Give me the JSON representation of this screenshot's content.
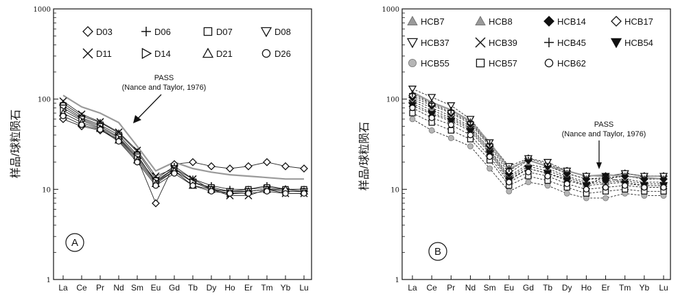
{
  "panels": [
    {
      "panel_label": "A",
      "ylabel": "样品/球粒陨石",
      "annotation_line1": "PASS",
      "annotation_line2": "(Nance and Taylor, 1976)",
      "legend": [
        {
          "name": "D03",
          "marker": "diamond"
        },
        {
          "name": "D06",
          "marker": "plus"
        },
        {
          "name": "D07",
          "marker": "square"
        },
        {
          "name": "D08",
          "marker": "tri-down"
        },
        {
          "name": "D11",
          "marker": "cross"
        },
        {
          "name": "D14",
          "marker": "tri-right"
        },
        {
          "name": "D21",
          "marker": "tri-up"
        },
        {
          "name": "D26",
          "marker": "circle"
        }
      ]
    },
    {
      "panel_label": "B",
      "ylabel": "样品/球粒陨石",
      "annotation_line1": "PASS",
      "annotation_line2": "(Nance and Taylor, 1976)",
      "legend": [
        {
          "name": "HCB7",
          "marker": "tri-up-filled"
        },
        {
          "name": "HCB8",
          "marker": "tri-up-filled"
        },
        {
          "name": "HCB14",
          "marker": "diamond-filled"
        },
        {
          "name": "HCB17",
          "marker": "diamond"
        },
        {
          "name": "HCB37",
          "marker": "tri-down"
        },
        {
          "name": "HCB39",
          "marker": "cross"
        },
        {
          "name": "HCB45",
          "marker": "plus"
        },
        {
          "name": "HCB54",
          "marker": "tri-down-filled"
        },
        {
          "name": "HCB55",
          "marker": "circle-filled"
        },
        {
          "name": "HCB57",
          "marker": "square"
        },
        {
          "name": "HCB62",
          "marker": "circle"
        }
      ]
    }
  ],
  "chart_data": [
    {
      "type": "line",
      "panel": "A",
      "ylabel": "样品/球粒陨石",
      "yscale": "log",
      "ylim": [
        1,
        1000
      ],
      "yticks": [
        "1",
        "10",
        "100",
        "1000"
      ],
      "categories": [
        "La",
        "Ce",
        "Pr",
        "Nd",
        "Sm",
        "Eu",
        "Gd",
        "Tb",
        "Dy",
        "Ho",
        "Er",
        "Tm",
        "Yb",
        "Lu"
      ],
      "series": [
        {
          "name": "D03",
          "values": [
            60,
            50,
            45,
            36,
            22,
            7,
            19,
            20,
            18,
            17,
            18,
            20,
            18,
            17
          ]
        },
        {
          "name": "D06",
          "values": [
            90,
            65,
            55,
            42,
            26,
            13,
            18,
            13,
            11,
            10,
            10,
            11,
            10,
            10
          ]
        },
        {
          "name": "D07",
          "values": [
            85,
            62,
            52,
            40,
            24,
            12,
            17,
            12,
            10.5,
            9.5,
            10,
            10.5,
            10,
            10
          ]
        },
        {
          "name": "D08",
          "values": [
            80,
            60,
            50,
            38,
            23,
            12.5,
            17,
            12,
            10,
            9.5,
            9.5,
            10,
            9.5,
            9.5
          ]
        },
        {
          "name": "D11",
          "values": [
            95,
            68,
            56,
            43,
            27,
            14,
            17,
            13,
            10,
            8.5,
            8.5,
            10,
            9,
            9
          ]
        },
        {
          "name": "D14",
          "values": [
            75,
            58,
            48,
            37,
            22,
            12,
            16,
            12,
            10,
            9,
            9.5,
            10,
            9.5,
            9.5
          ]
        },
        {
          "name": "D21",
          "values": [
            70,
            55,
            47,
            35,
            21,
            11.5,
            16,
            11,
            10,
            9.5,
            9.5,
            10,
            10,
            9.5
          ]
        },
        {
          "name": "D26",
          "values": [
            65,
            52,
            46,
            34,
            20,
            11,
            15,
            11,
            9.5,
            9,
            9,
            9.5,
            9,
            9
          ]
        },
        {
          "name": "PASS",
          "values": [
            110,
            82,
            70,
            55,
            30,
            16,
            20,
            17,
            15.5,
            14.5,
            14,
            13.5,
            13,
            13
          ]
        }
      ]
    },
    {
      "type": "line",
      "panel": "B",
      "ylabel": "样品/球粒陨石",
      "yscale": "log",
      "ylim": [
        1,
        1000
      ],
      "yticks": [
        "1",
        "10",
        "100",
        "1000"
      ],
      "categories": [
        "La",
        "Ce",
        "Pr",
        "Nd",
        "Sm",
        "Eu",
        "Gd",
        "Tb",
        "Dy",
        "Ho",
        "Er",
        "Tm",
        "Yb",
        "Lu"
      ],
      "series": [
        {
          "name": "HCB7",
          "values": [
            100,
            80,
            65,
            50,
            28,
            14,
            19,
            17,
            14,
            12,
            12.5,
            13,
            12,
            12
          ]
        },
        {
          "name": "HCB8",
          "values": [
            95,
            75,
            62,
            48,
            27,
            13.5,
            18,
            16,
            13.5,
            11.5,
            12,
            12.5,
            11.5,
            11.5
          ]
        },
        {
          "name": "HCB14",
          "values": [
            105,
            85,
            70,
            53,
            30,
            15,
            21,
            18,
            15,
            13,
            13,
            14,
            13,
            13
          ]
        },
        {
          "name": "HCB17",
          "values": [
            110,
            88,
            72,
            55,
            31,
            16,
            22,
            19,
            16,
            14,
            14,
            15,
            14,
            14
          ]
        },
        {
          "name": "HCB37",
          "values": [
            130,
            105,
            85,
            60,
            33,
            18,
            22,
            20,
            16,
            14,
            14,
            15,
            14,
            14
          ]
        },
        {
          "name": "HCB39",
          "values": [
            90,
            70,
            60,
            46,
            26,
            13,
            17,
            15,
            13,
            11,
            11.5,
            12,
            11,
            11
          ]
        },
        {
          "name": "HCB45",
          "values": [
            115,
            90,
            75,
            56,
            32,
            17,
            21,
            18,
            15,
            13,
            13.5,
            14,
            13,
            13
          ]
        },
        {
          "name": "HCB54",
          "values": [
            85,
            68,
            57,
            44,
            25,
            12.5,
            17,
            15,
            12.5,
            11,
            14,
            11.5,
            11,
            11
          ]
        },
        {
          "name": "HCB55",
          "values": [
            60,
            45,
            37,
            30,
            17,
            9.5,
            12,
            11,
            9,
            8,
            8,
            9,
            8.5,
            8.5
          ]
        },
        {
          "name": "HCB57",
          "values": [
            70,
            55,
            45,
            36,
            21,
            11,
            14,
            12.5,
            10.5,
            9,
            9.5,
            10,
            9.5,
            9.5
          ]
        },
        {
          "name": "HCB62",
          "values": [
            80,
            62,
            52,
            40,
            23,
            12,
            15.5,
            14,
            11.5,
            10,
            10.5,
            11,
            10.5,
            10.5
          ]
        },
        {
          "name": "PASS",
          "values": [
            120,
            92,
            76,
            57,
            33,
            17,
            21,
            18,
            16,
            14,
            14.5,
            14,
            13.5,
            13
          ]
        }
      ]
    }
  ]
}
